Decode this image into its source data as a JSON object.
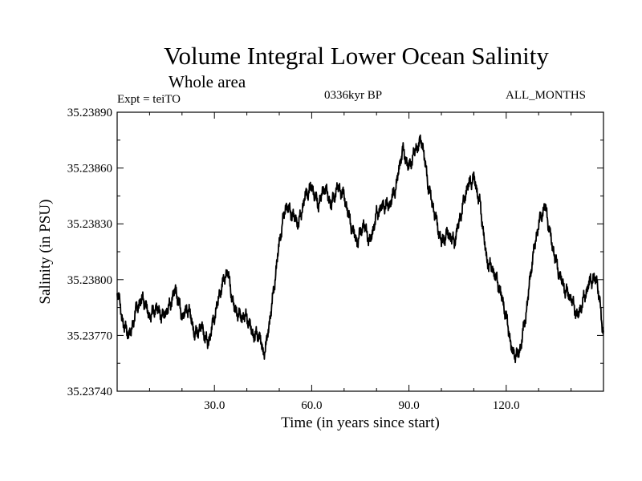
{
  "chart_data": {
    "type": "line",
    "title": "Volume Integral Lower Ocean Salinity",
    "subtitle": "Whole area",
    "expt_label": "Expt = teiTO",
    "period_label": "0336kyr BP",
    "months_label": "ALL_MONTHS",
    "xlabel": "Time (in years since start)",
    "ylabel": "Salinity (in PSU)",
    "xlim": [
      0,
      150
    ],
    "ylim": [
      35.2374,
      35.2389
    ],
    "xticks": [
      30,
      60,
      90,
      120
    ],
    "xtick_labels": [
      "30.0",
      "60.0",
      "90.0",
      "120.0"
    ],
    "yticks": [
      35.2374,
      35.2377,
      35.238,
      35.2383,
      35.2386,
      35.2389
    ],
    "ytick_labels": [
      "35.23740",
      "35.23770",
      "35.23800",
      "35.23830",
      "35.23860",
      "35.23890"
    ],
    "series": [
      {
        "name": "salinity",
        "color": "#000000",
        "x": [
          0,
          2,
          4,
          6,
          8,
          10,
          12,
          14,
          16,
          18,
          20,
          22,
          24,
          26,
          28,
          30,
          32,
          34,
          36,
          38,
          40,
          42,
          44,
          45,
          46,
          48,
          50,
          52,
          54,
          56,
          58,
          60,
          62,
          64,
          66,
          68,
          70,
          72,
          74,
          76,
          78,
          80,
          82,
          84,
          86,
          88,
          90,
          92,
          94,
          96,
          98,
          100,
          102,
          104,
          106,
          108,
          110,
          112,
          114,
          116,
          118,
          120,
          122,
          124,
          126,
          128,
          130,
          132,
          134,
          136,
          138,
          140,
          142,
          144,
          146,
          148,
          150
        ],
        "y": [
          35.23795,
          35.23775,
          35.2377,
          35.23785,
          35.2379,
          35.2378,
          35.23785,
          35.2378,
          35.23785,
          35.23795,
          35.2378,
          35.23785,
          35.2377,
          35.23775,
          35.23765,
          35.2378,
          35.23795,
          35.23805,
          35.23785,
          35.2378,
          35.2378,
          35.2377,
          35.2377,
          35.2376,
          35.23765,
          35.2379,
          35.2382,
          35.2384,
          35.23835,
          35.2383,
          35.23845,
          35.2385,
          35.2384,
          35.2385,
          35.2384,
          35.2385,
          35.23845,
          35.2383,
          35.2382,
          35.2383,
          35.2382,
          35.23835,
          35.2384,
          35.2384,
          35.2385,
          35.2387,
          35.2386,
          35.2387,
          35.23875,
          35.2385,
          35.23835,
          35.2382,
          35.23825,
          35.2382,
          35.23835,
          35.2385,
          35.23855,
          35.2384,
          35.2381,
          35.23805,
          35.23795,
          35.2378,
          35.2376,
          35.2376,
          35.2378,
          35.2381,
          35.2383,
          35.2384,
          35.2382,
          35.23805,
          35.23795,
          35.2379,
          35.2378,
          35.2379,
          35.238,
          35.238,
          35.2377
        ]
      }
    ]
  }
}
